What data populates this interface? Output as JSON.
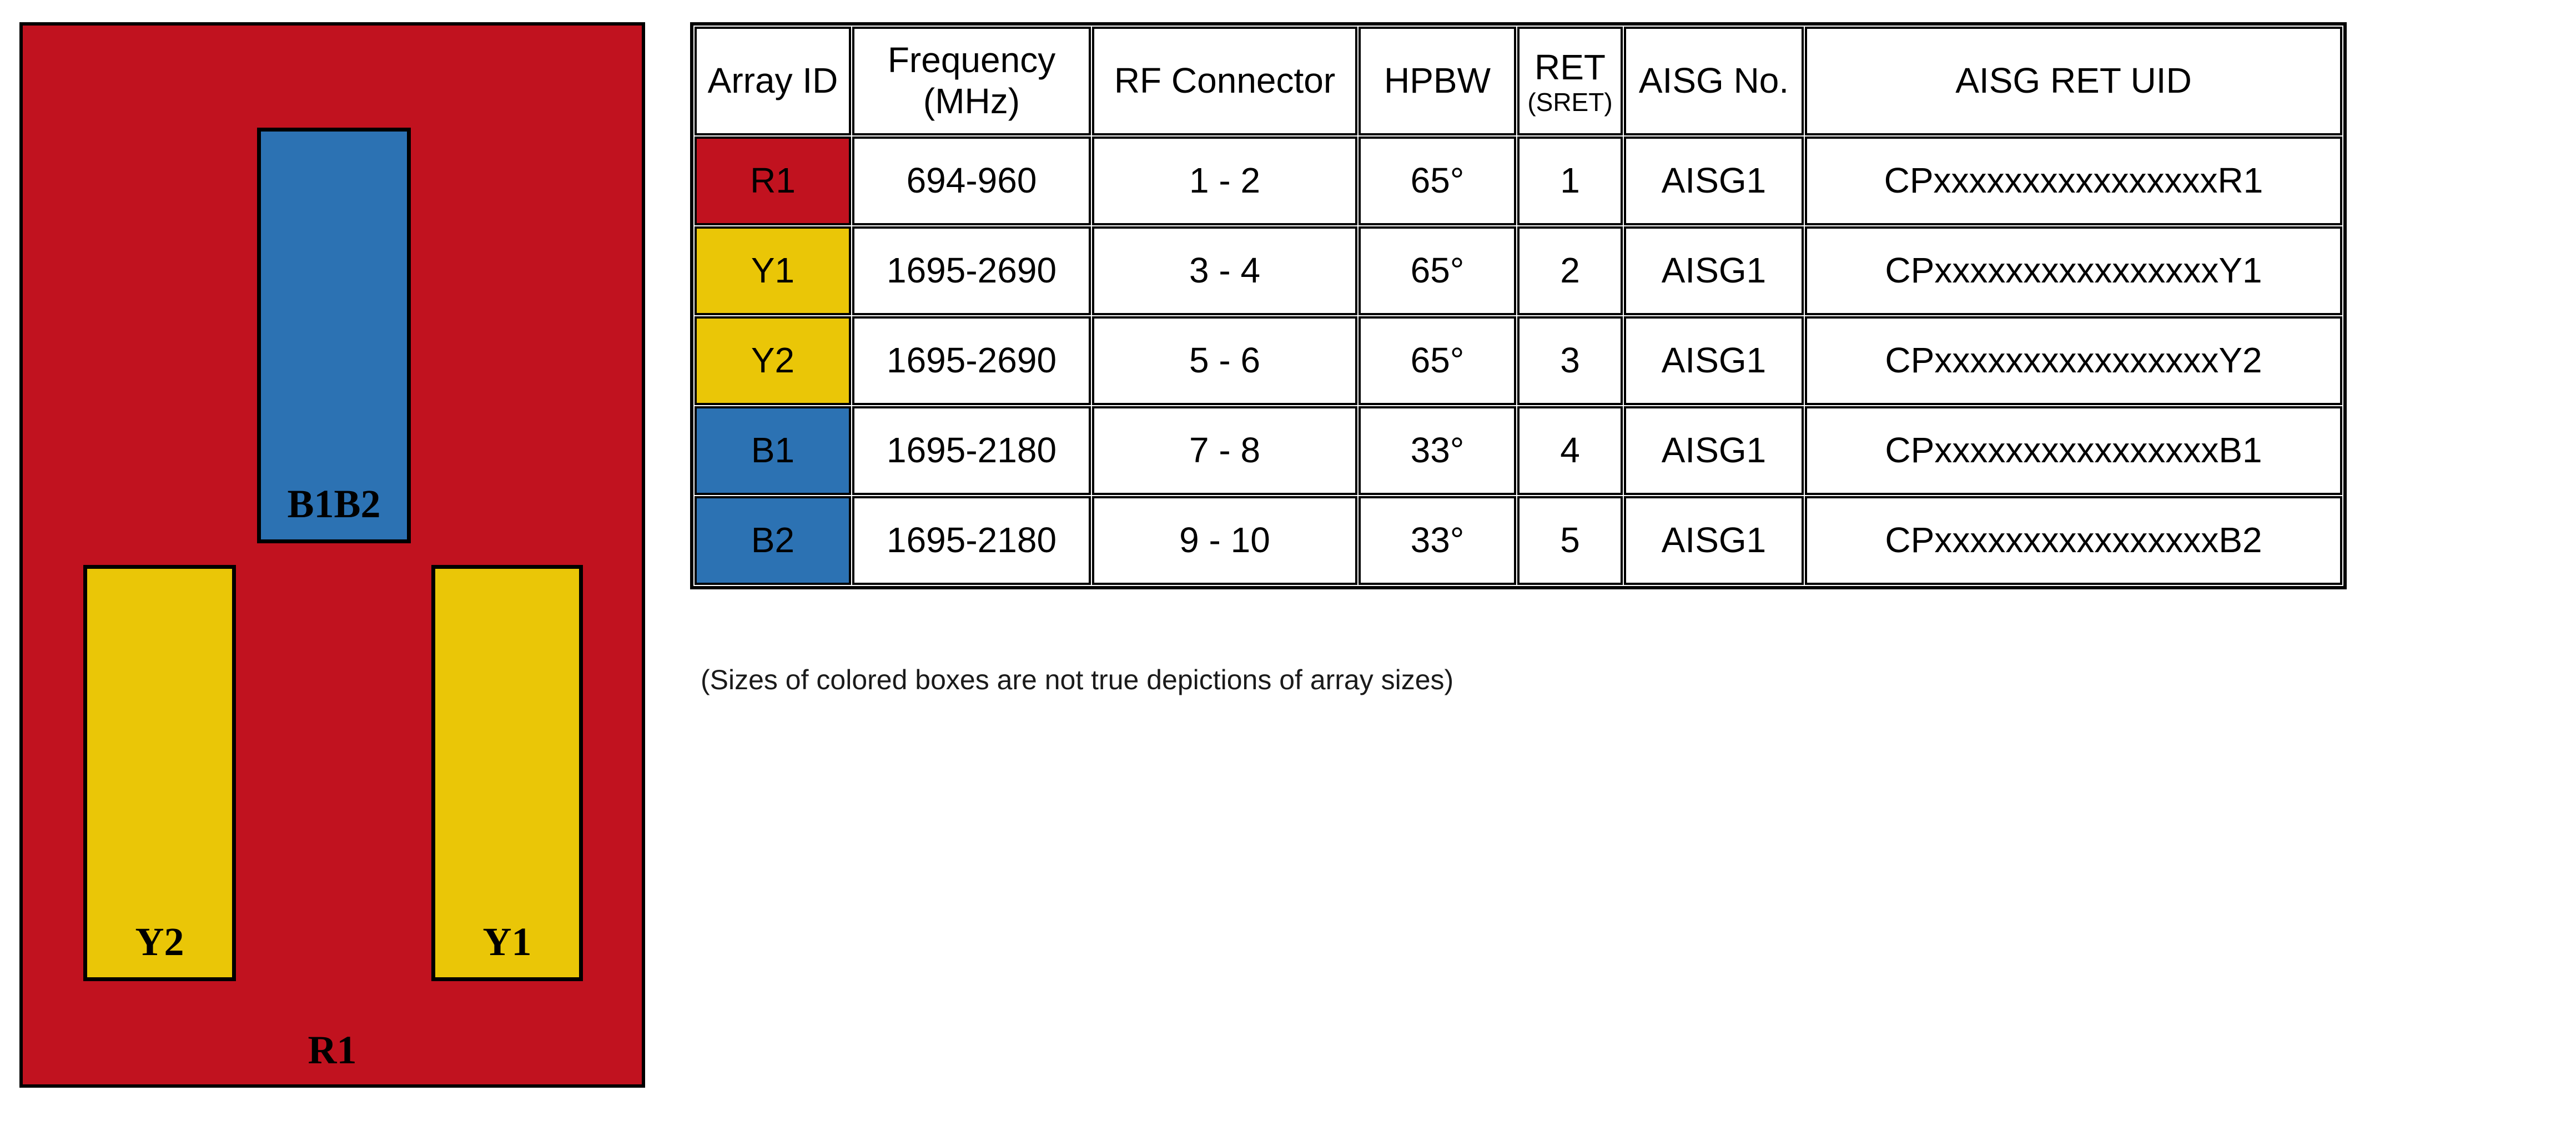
{
  "diagram": {
    "outer": {
      "label": "R1",
      "color": "#C1121F"
    },
    "b1b2": {
      "label": "B1B2",
      "color": "#2C72B3"
    },
    "y2": {
      "label": "Y2",
      "color": "#EAC607"
    },
    "y1": {
      "label": "Y1",
      "color": "#EAC607"
    }
  },
  "table": {
    "headers": {
      "array_id": "Array ID",
      "frequency_line1": "Frequency",
      "frequency_line2": "(MHz)",
      "rf_connector": "RF Connector",
      "hpbw": "HPBW",
      "ret_line1": "RET",
      "ret_line2": "(SRET)",
      "aisg_no": "AISG No.",
      "aisg_ret_uid": "AISG RET UID"
    },
    "rows": [
      {
        "array_id": "R1",
        "id_color": "#C1121F",
        "frequency_mhz": "694-960",
        "rf_connector": "1 - 2",
        "hpbw": "65°",
        "ret_sret": "1",
        "aisg_no": "AISG1",
        "aisg_ret_uid": "CPxxxxxxxxxxxxxxxxR1"
      },
      {
        "array_id": "Y1",
        "id_color": "#EAC607",
        "frequency_mhz": "1695-2690",
        "rf_connector": "3 - 4",
        "hpbw": "65°",
        "ret_sret": "2",
        "aisg_no": "AISG1",
        "aisg_ret_uid": "CPxxxxxxxxxxxxxxxxY1"
      },
      {
        "array_id": "Y2",
        "id_color": "#EAC607",
        "frequency_mhz": "1695-2690",
        "rf_connector": "5 - 6",
        "hpbw": "65°",
        "ret_sret": "3",
        "aisg_no": "AISG1",
        "aisg_ret_uid": "CPxxxxxxxxxxxxxxxxY2"
      },
      {
        "array_id": "B1",
        "id_color": "#2C72B3",
        "frequency_mhz": "1695-2180",
        "rf_connector": "7 - 8",
        "hpbw": "33°",
        "ret_sret": "4",
        "aisg_no": "AISG1",
        "aisg_ret_uid": "CPxxxxxxxxxxxxxxxxB1"
      },
      {
        "array_id": "B2",
        "id_color": "#2C72B3",
        "frequency_mhz": "1695-2180",
        "rf_connector": "9 - 10",
        "hpbw": "33°",
        "ret_sret": "5",
        "aisg_no": "AISG1",
        "aisg_ret_uid": "CPxxxxxxxxxxxxxxxxB2"
      }
    ]
  },
  "note": "(Sizes of colored boxes are not true depictions of array sizes)"
}
